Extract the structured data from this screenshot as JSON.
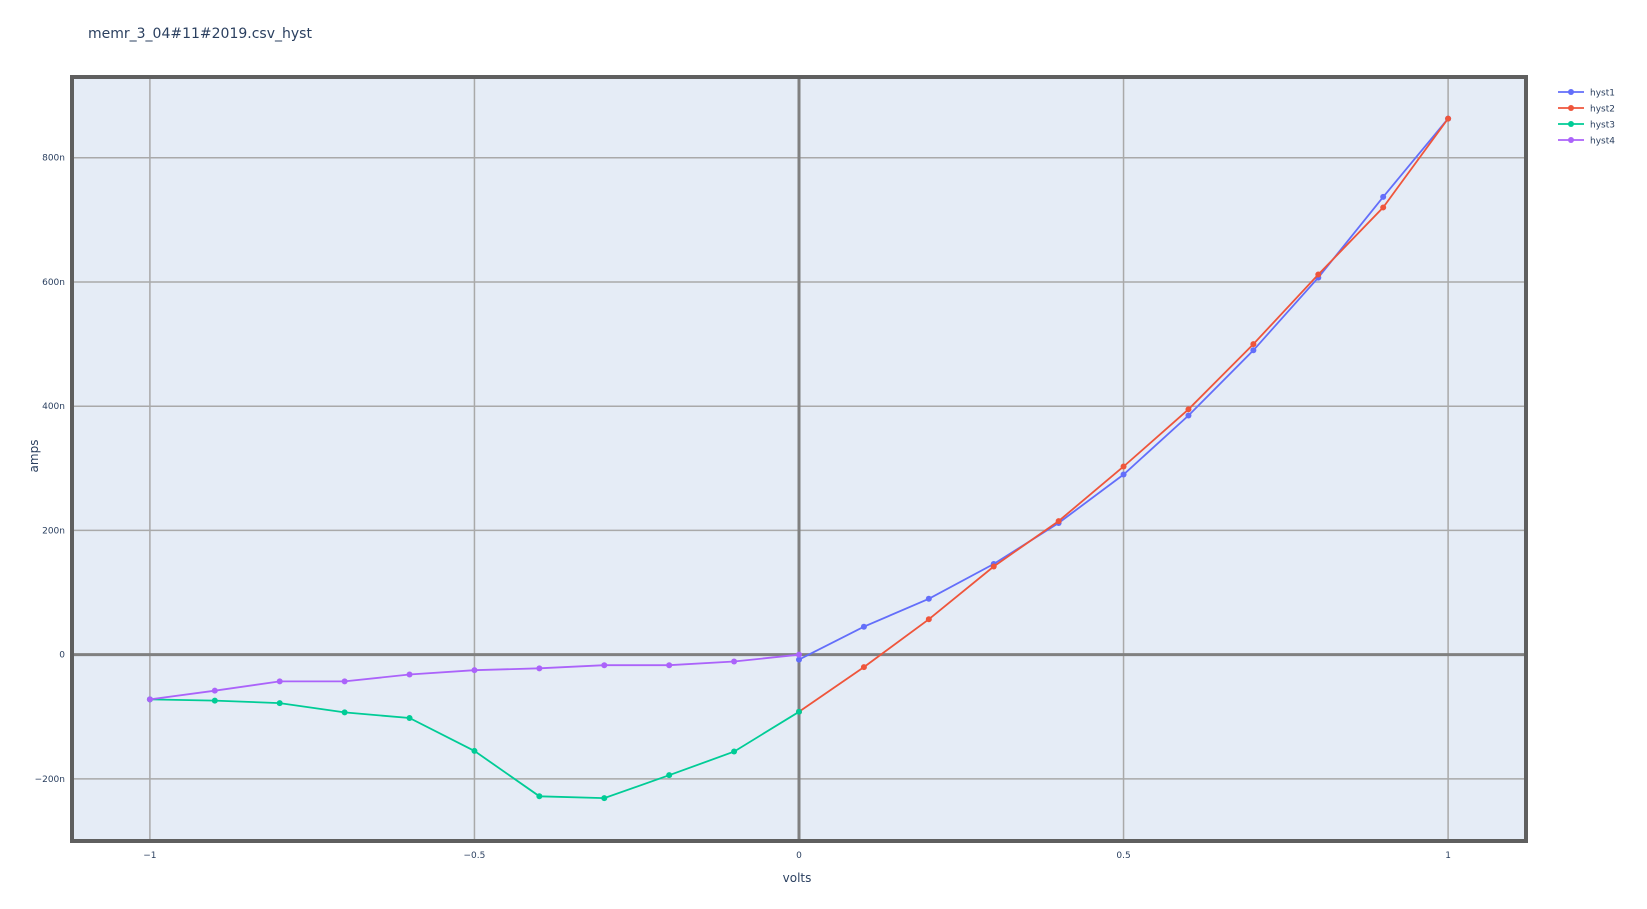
{
  "chart_data": {
    "type": "line",
    "title": "memr_3_04#11#2019.csv_hyst",
    "xlabel": "volts",
    "ylabel": "amps",
    "xlim": [
      -1.12,
      1.12
    ],
    "ylim": [
      -300,
      930
    ],
    "y_unit": "nano",
    "grid": true,
    "legend": "top-right",
    "xticks": [
      {
        "value": -1,
        "label": "−1"
      },
      {
        "value": -0.5,
        "label": "−0.5"
      },
      {
        "value": 0,
        "label": "0"
      },
      {
        "value": 0.5,
        "label": "0.5"
      },
      {
        "value": 1,
        "label": "1"
      }
    ],
    "yticks": [
      {
        "value": -200,
        "label": "−200n"
      },
      {
        "value": 0,
        "label": "0"
      },
      {
        "value": 200,
        "label": "200n"
      },
      {
        "value": 400,
        "label": "400n"
      },
      {
        "value": 600,
        "label": "600n"
      },
      {
        "value": 800,
        "label": "800n"
      }
    ],
    "series": [
      {
        "name": "hyst1",
        "color": "#636efa",
        "x": [
          0,
          0.1,
          0.2,
          0.3,
          0.4,
          0.5,
          0.6,
          0.7,
          0.8,
          0.9,
          1.0
        ],
        "y": [
          -8,
          45,
          90,
          146,
          212,
          290,
          385,
          490,
          607,
          737,
          863
        ]
      },
      {
        "name": "hyst2",
        "color": "#ef553b",
        "x": [
          1.0,
          0.9,
          0.8,
          0.7,
          0.6,
          0.5,
          0.4,
          0.3,
          0.2,
          0.1,
          0
        ],
        "y": [
          863,
          720,
          612,
          500,
          395,
          303,
          215,
          142,
          57,
          -20,
          -92
        ]
      },
      {
        "name": "hyst3",
        "color": "#00cc96",
        "x": [
          0,
          -0.1,
          -0.2,
          -0.3,
          -0.4,
          -0.5,
          -0.6,
          -0.7,
          -0.8,
          -0.9,
          -1.0
        ],
        "y": [
          -92,
          -156,
          -194,
          -231,
          -228,
          -155,
          -102,
          -93,
          -78,
          -74,
          -72
        ]
      },
      {
        "name": "hyst4",
        "color": "#ab63fa",
        "x": [
          -1.0,
          -0.9,
          -0.8,
          -0.7,
          -0.6,
          -0.5,
          -0.4,
          -0.3,
          -0.2,
          -0.1,
          0
        ],
        "y": [
          -72,
          -58,
          -43,
          -43,
          -32,
          -25,
          -22,
          -17,
          -17,
          -11,
          0
        ]
      }
    ]
  }
}
